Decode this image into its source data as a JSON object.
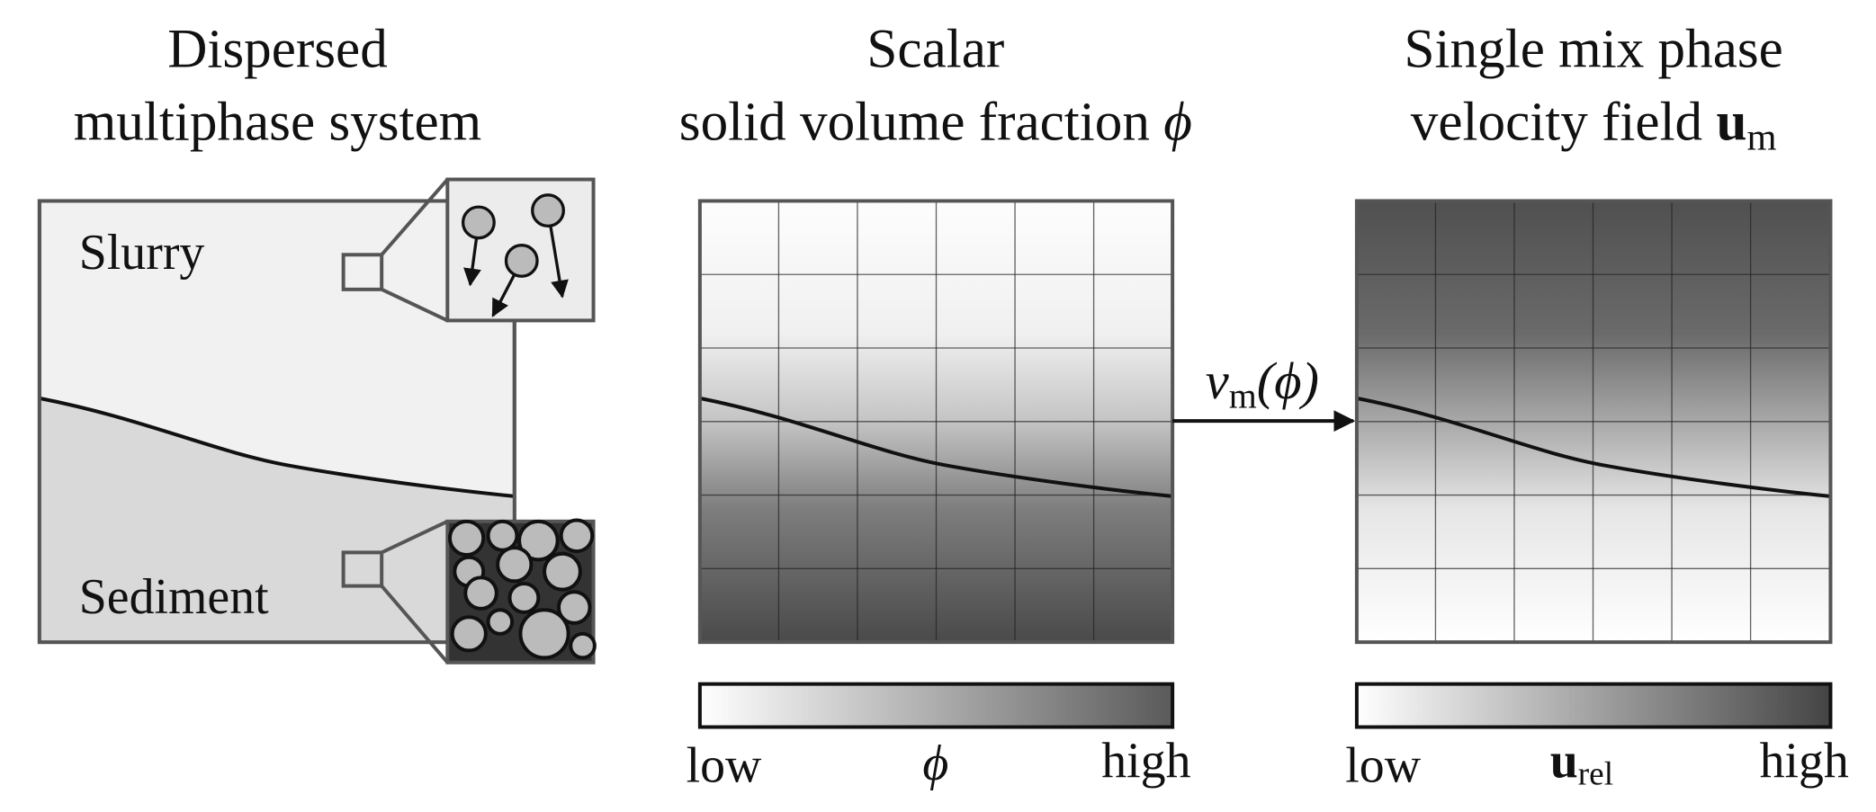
{
  "panels": [
    {
      "title": [
        "Dispersed",
        "multiphase system"
      ],
      "labels": [
        "Slurry",
        "Sediment"
      ]
    },
    {
      "title": [
        "Scalar",
        "solid volume fraction ",
        "ϕ"
      ],
      "colorbar": {
        "low": "low",
        "symbol": "ϕ",
        "high": "high"
      }
    },
    {
      "title": [
        "Single mix phase",
        "velocity field ",
        "u",
        "m"
      ],
      "colorbar": {
        "low": "low",
        "symbol": "u",
        "symbol_sub": "rel",
        "high": "high"
      }
    }
  ],
  "arrow": {
    "symbol": "ν",
    "sub": "m",
    "arg": "(ϕ)"
  }
}
